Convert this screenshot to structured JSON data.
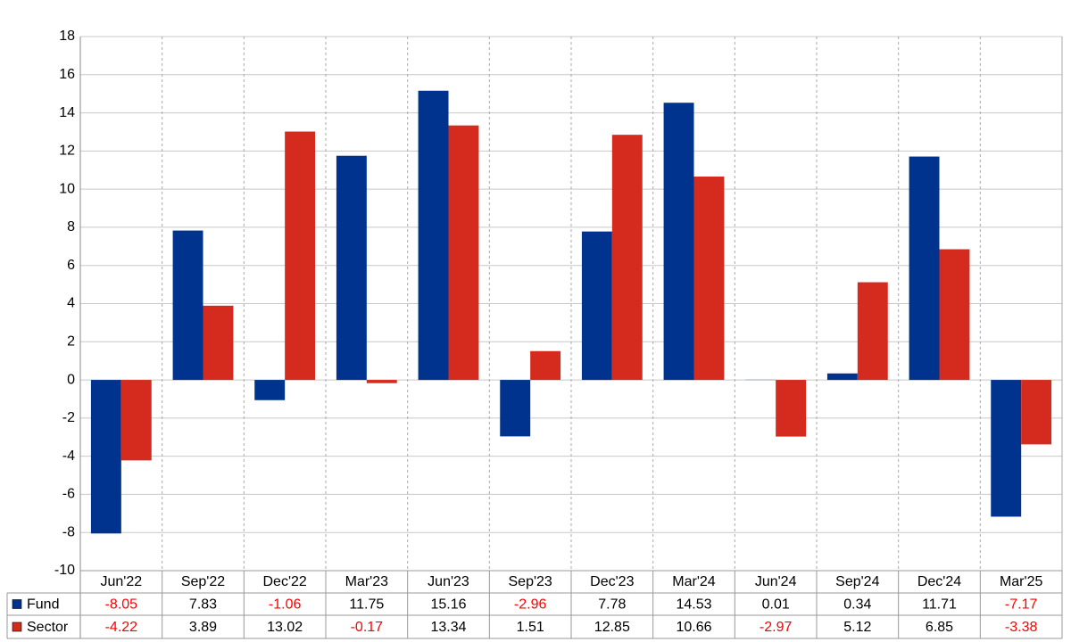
{
  "chart_data": {
    "type": "bar",
    "categories": [
      "Jun'22",
      "Sep'22",
      "Dec'22",
      "Mar'23",
      "Jun'23",
      "Sep'23",
      "Dec'23",
      "Mar'24",
      "Jun'24",
      "Sep'24",
      "Dec'24",
      "Mar'25"
    ],
    "series": [
      {
        "name": "Fund",
        "color": "#00338d",
        "values": [
          -8.05,
          7.83,
          -1.06,
          11.75,
          15.16,
          -2.96,
          7.78,
          14.53,
          0.01,
          0.34,
          11.71,
          -7.17
        ]
      },
      {
        "name": "Sector",
        "color": "#d52b1e",
        "values": [
          -4.22,
          3.89,
          13.02,
          -0.17,
          13.34,
          1.51,
          12.85,
          10.66,
          -2.97,
          5.12,
          6.85,
          -3.38
        ]
      }
    ],
    "ylim": [
      -10,
      18
    ],
    "yticks": [
      -10,
      -8,
      -6,
      -4,
      -2,
      0,
      2,
      4,
      6,
      8,
      10,
      12,
      14,
      16,
      18
    ],
    "grid": true,
    "negative_color": "#ff0000"
  }
}
